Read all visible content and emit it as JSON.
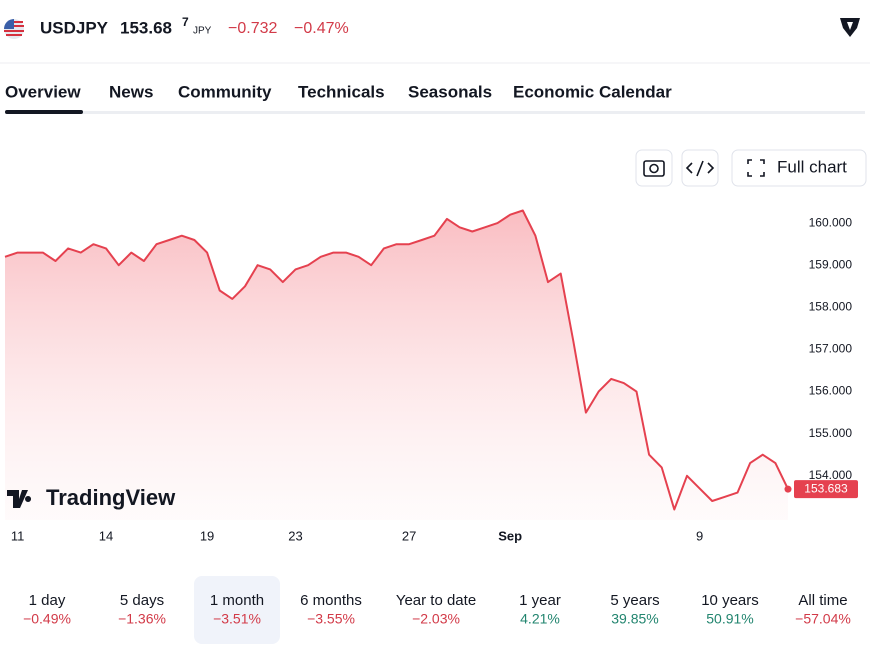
{
  "header": {
    "symbol": "USDJPY",
    "price": "153.68",
    "price_last_digit": "7",
    "currency": "JPY",
    "change": "−0.732",
    "change_percent": "−0.47%"
  },
  "tabs": [
    "Overview",
    "News",
    "Community",
    "Technicals",
    "Seasonals",
    "Economic Calendar"
  ],
  "buttons": {
    "full_chart": "Full chart"
  },
  "watermark": "TradingView",
  "chart_data": {
    "type": "line",
    "categories": [
      null,
      "11",
      null,
      null,
      null,
      null,
      null,
      null,
      "14",
      null,
      null,
      null,
      null,
      null,
      null,
      null,
      "19",
      null,
      null,
      null,
      null,
      null,
      null,
      "23",
      null,
      null,
      null,
      null,
      null,
      null,
      null,
      null,
      "27",
      null,
      null,
      null,
      null,
      null,
      null,
      null,
      "Sep",
      null,
      null,
      null,
      null,
      null,
      null,
      null,
      null,
      null,
      null,
      null,
      null,
      null,
      null,
      "9",
      null,
      null,
      null,
      null,
      null,
      null,
      null
    ],
    "series": [
      {
        "name": "USDJPY",
        "color": "#e5414f",
        "values": [
          159.2,
          159.3,
          159.3,
          159.3,
          159.1,
          159.4,
          159.3,
          159.5,
          159.4,
          159.0,
          159.3,
          159.1,
          159.5,
          159.6,
          159.7,
          159.6,
          159.3,
          158.4,
          158.2,
          158.5,
          159.0,
          158.9,
          158.6,
          158.9,
          159.0,
          159.2,
          159.3,
          159.3,
          159.2,
          159.0,
          159.4,
          159.5,
          159.5,
          159.6,
          159.7,
          160.1,
          159.9,
          159.8,
          159.9,
          160.0,
          160.2,
          160.3,
          159.7,
          158.6,
          158.8,
          157.2,
          155.5,
          156.0,
          156.3,
          156.2,
          156.0,
          154.5,
          154.2,
          153.2,
          154.0,
          153.7,
          153.4,
          153.5,
          153.6,
          154.3,
          154.5,
          154.3,
          153.683
        ]
      }
    ],
    "ylim": [
      152.95,
      160.43
    ],
    "yticks": [
      {
        "value": 154,
        "label": "154.000"
      },
      {
        "value": 155,
        "label": "155.000"
      },
      {
        "value": 156,
        "label": "156.000"
      },
      {
        "value": 157,
        "label": "157.000"
      },
      {
        "value": 158,
        "label": "158.000"
      },
      {
        "value": 159,
        "label": "159.000"
      },
      {
        "value": 160,
        "label": "160.000"
      }
    ],
    "grid": false
  },
  "periods": [
    {
      "name": "1 day",
      "change": "−0.49%",
      "color": "#d23a48"
    },
    {
      "name": "5 days",
      "change": "−1.36%",
      "color": "#d23a48"
    },
    {
      "name": "1 month",
      "change": "−3.51%",
      "color": "#d23a48",
      "selected": true
    },
    {
      "name": "6 months",
      "change": "−3.55%",
      "color": "#d23a48"
    },
    {
      "name": "Year to date",
      "change": "−2.03%",
      "color": "#d23a48"
    },
    {
      "name": "1 year",
      "change": "4.21%",
      "color": "#22856f"
    },
    {
      "name": "5 years",
      "change": "39.85%",
      "color": "#22856f"
    },
    {
      "name": "10 years",
      "change": "50.91%",
      "color": "#22856f"
    },
    {
      "name": "All time",
      "change": "−57.04%",
      "color": "#d23a48"
    }
  ]
}
